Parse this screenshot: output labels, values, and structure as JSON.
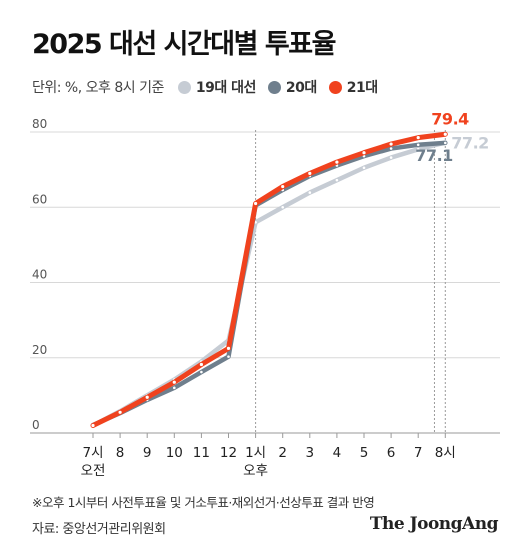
{
  "title": "2025 대선 시간대별 투표율",
  "unit_note": "단위: %, 오후 8시 기준",
  "legend": [
    {
      "label": "19대 대선",
      "color": "#c6ccd4"
    },
    {
      "label": "20대",
      "color": "#6f7f8d"
    },
    {
      "label": "21대",
      "color": "#f0421e"
    }
  ],
  "footnote": "※오후 1시부터 사전투표율 및 거소투표·재외선거·선상투표 결과 반영",
  "source": "자료: 중앙선거관리위원회",
  "brand": "The JoongAng",
  "chart_data": {
    "type": "line",
    "title": "2025 대선 시간대별 투표율",
    "xlabel": "",
    "ylabel": "",
    "categories": [
      "7시",
      "8",
      "9",
      "10",
      "11",
      "12",
      "1시",
      "2",
      "3",
      "4",
      "5",
      "6",
      "7",
      "8시"
    ],
    "category_sublabels": {
      "0": "오전",
      "6": "오후"
    },
    "yticks": [
      0,
      20,
      40,
      60,
      80
    ],
    "ylim": [
      0,
      80
    ],
    "grid": true,
    "series": [
      {
        "name": "19대 대선",
        "color": "#c6ccd4",
        "values": [
          2.0,
          5.8,
          10.0,
          14.2,
          19.0,
          24.6,
          56.0,
          60.0,
          63.9,
          67.2,
          70.5,
          73.2,
          75.4,
          77.2
        ]
      },
      {
        "name": "20대",
        "color": "#6f7f8d",
        "values": [
          2.1,
          5.3,
          8.8,
          12.0,
          16.2,
          20.3,
          60.5,
          64.6,
          68.3,
          71.1,
          73.6,
          75.6,
          76.6,
          77.1
        ]
      },
      {
        "name": "21대",
        "color": "#f0421e",
        "values": [
          2.0,
          5.5,
          9.5,
          13.5,
          18.2,
          22.5,
          61.0,
          65.5,
          69.0,
          72.0,
          74.5,
          76.8,
          78.5,
          79.4
        ]
      }
    ],
    "end_labels": [
      {
        "series": "21대",
        "text": "79.4",
        "color": "#f0421e"
      },
      {
        "series": "19대 대선",
        "text": "77.2",
        "color": "#c6ccd4"
      },
      {
        "series": "20대",
        "text": "77.1",
        "color": "#6f7f8d"
      }
    ]
  }
}
